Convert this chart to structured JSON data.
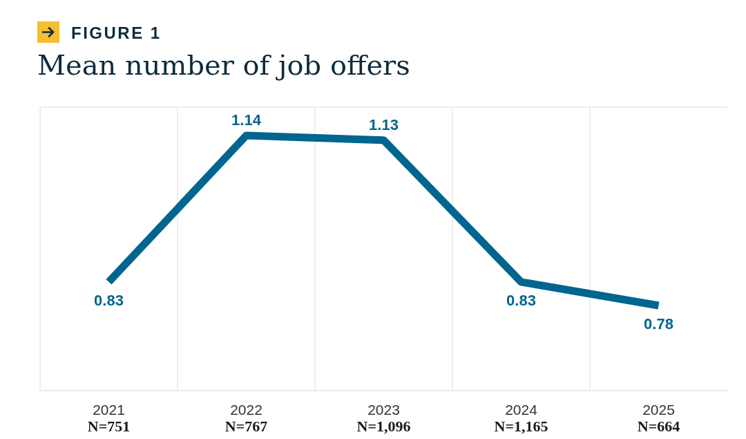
{
  "chart_data": {
    "type": "line",
    "title": "Mean number of job offers",
    "annotations": [
      "FIGURE 1"
    ],
    "categories": [
      "2021\nN=751",
      "2022\nN=767",
      "2023\nN=1,096",
      "2024\nN=1,165",
      "2025\nN=664"
    ],
    "series": [
      {
        "color": "#00658f",
        "values": [
          0.83,
          1.14,
          1.13,
          0.83,
          0.78
        ]
      }
    ],
    "ylim": [
      0.6,
      1.2
    ],
    "tick_labels": "x",
    "grid": true,
    "data_labels": true,
    "marker": "none",
    "line_style": "solid"
  }
}
